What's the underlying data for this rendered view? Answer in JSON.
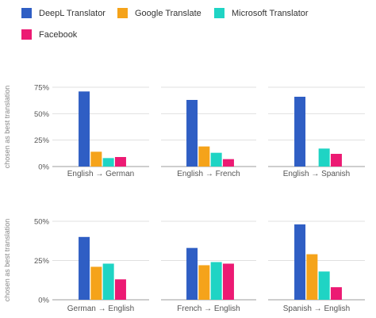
{
  "chart_data": {
    "type": "bar",
    "legend_position": "top-left",
    "grid": true,
    "series": [
      {
        "name": "DeepL Translator",
        "color": "#2f5ec4"
      },
      {
        "name": "Google Translate",
        "color": "#f5a31a"
      },
      {
        "name": "Microsoft Translator",
        "color": "#1fd4c4"
      },
      {
        "name": "Facebook",
        "color": "#ec1a73"
      }
    ],
    "rows": [
      {
        "ylabel": "chosen as best translation",
        "ylim": [
          0,
          75
        ],
        "yticks": [
          0,
          25,
          50,
          75
        ],
        "ytick_labels": [
          "0%",
          "25%",
          "50%",
          "75%"
        ],
        "panels": [
          {
            "label": "English → German",
            "values": [
              71,
              14,
              8,
              9
            ]
          },
          {
            "label": "English → French",
            "values": [
              63,
              19,
              13,
              7
            ]
          },
          {
            "label": "English → Spanish",
            "values": [
              66,
              null,
              17,
              12
            ]
          }
        ]
      },
      {
        "ylabel": "chosen as best translation",
        "ylim": [
          0,
          50
        ],
        "yticks": [
          0,
          25,
          50
        ],
        "ytick_labels": [
          "0%",
          "25%",
          "50%"
        ],
        "panels": [
          {
            "label": "German → English",
            "values": [
              40,
              21,
              23,
              13
            ]
          },
          {
            "label": "French → English",
            "values": [
              33,
              22,
              24,
              23
            ]
          },
          {
            "label": "Spanish → English",
            "values": [
              48,
              29,
              18,
              8
            ]
          }
        ]
      }
    ]
  }
}
